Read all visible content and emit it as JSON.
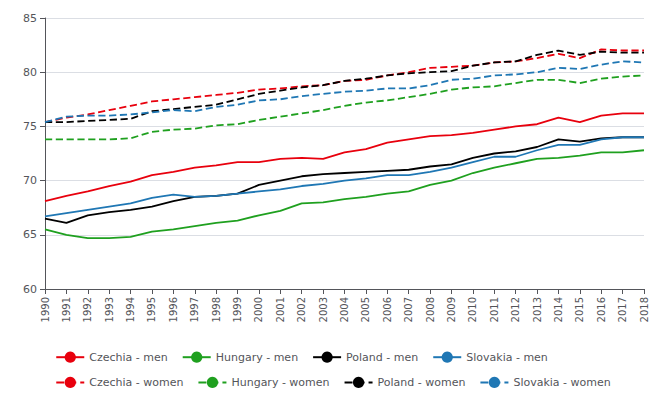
{
  "chart_data": {
    "type": "line",
    "x": [
      1990,
      1991,
      1992,
      1993,
      1994,
      1995,
      1996,
      1997,
      1998,
      1999,
      2000,
      2001,
      2002,
      2003,
      2004,
      2005,
      2006,
      2007,
      2008,
      2009,
      2010,
      2011,
      2012,
      2013,
      2014,
      2015,
      2016,
      2017,
      2018
    ],
    "xlim": [
      1990,
      2018
    ],
    "xticks": [
      1990,
      1991,
      1992,
      1993,
      1994,
      1995,
      1996,
      1997,
      1998,
      1999,
      2000,
      2001,
      2002,
      2003,
      2004,
      2005,
      2006,
      2007,
      2008,
      2009,
      2010,
      2011,
      2012,
      2013,
      2014,
      2015,
      2016,
      2017,
      2018
    ],
    "ylim": [
      60,
      85
    ],
    "yticks": [
      60,
      65,
      70,
      75,
      80,
      85
    ],
    "grid": true,
    "legend": "bottom",
    "series": [
      {
        "name": "Czechia - men",
        "color": "#e8000d",
        "line_style": "solid",
        "values": [
          68.1,
          68.6,
          69.0,
          69.5,
          69.9,
          70.5,
          70.8,
          71.2,
          71.4,
          71.7,
          71.7,
          72.0,
          72.1,
          72.0,
          72.6,
          72.9,
          73.5,
          73.8,
          74.1,
          74.2,
          74.4,
          74.7,
          75.0,
          75.2,
          75.8,
          75.4,
          76.0,
          76.2,
          76.2
        ]
      },
      {
        "name": "Hungary - men",
        "color": "#1fa01f",
        "line_style": "solid",
        "values": [
          65.5,
          65.0,
          64.7,
          64.7,
          64.8,
          65.3,
          65.5,
          65.8,
          66.1,
          66.3,
          66.8,
          67.2,
          67.9,
          68.0,
          68.3,
          68.5,
          68.8,
          69.0,
          69.6,
          70.0,
          70.7,
          71.2,
          71.6,
          72.0,
          72.1,
          72.3,
          72.6,
          72.6,
          72.8
        ]
      },
      {
        "name": "Poland - men",
        "color": "#000000",
        "line_style": "solid",
        "values": [
          66.5,
          66.1,
          66.8,
          67.1,
          67.3,
          67.6,
          68.1,
          68.5,
          68.6,
          68.8,
          69.6,
          70.0,
          70.4,
          70.6,
          70.7,
          70.8,
          70.9,
          71.0,
          71.3,
          71.5,
          72.1,
          72.5,
          72.7,
          73.1,
          73.8,
          73.6,
          73.9,
          74.0,
          74.0
        ]
      },
      {
        "name": "Slovakia - men",
        "color": "#1f77b4",
        "line_style": "solid",
        "values": [
          66.7,
          67.0,
          67.3,
          67.6,
          67.9,
          68.4,
          68.7,
          68.5,
          68.6,
          68.8,
          69.0,
          69.2,
          69.5,
          69.7,
          70.0,
          70.2,
          70.5,
          70.5,
          70.8,
          71.2,
          71.7,
          72.2,
          72.2,
          72.8,
          73.3,
          73.3,
          73.8,
          74.0,
          74.0
        ]
      },
      {
        "name": "Czechia - women",
        "color": "#e8000d",
        "line_style": "dashed",
        "values": [
          75.4,
          75.8,
          76.1,
          76.5,
          76.9,
          77.3,
          77.5,
          77.7,
          77.9,
          78.1,
          78.4,
          78.5,
          78.7,
          78.8,
          79.2,
          79.3,
          79.7,
          80.0,
          80.4,
          80.5,
          80.6,
          80.9,
          81.0,
          81.3,
          81.7,
          81.3,
          82.1,
          82.0,
          82.0
        ]
      },
      {
        "name": "Hungary - women",
        "color": "#1fa01f",
        "line_style": "dashed",
        "values": [
          73.8,
          73.8,
          73.8,
          73.8,
          73.9,
          74.5,
          74.7,
          74.8,
          75.1,
          75.2,
          75.6,
          75.9,
          76.2,
          76.5,
          76.9,
          77.2,
          77.4,
          77.7,
          78.0,
          78.4,
          78.6,
          78.7,
          79.0,
          79.3,
          79.3,
          79.0,
          79.4,
          79.6,
          79.7
        ]
      },
      {
        "name": "Poland - women",
        "color": "#000000",
        "line_style": "dashed",
        "values": [
          75.4,
          75.4,
          75.5,
          75.6,
          75.7,
          76.4,
          76.6,
          76.8,
          77.0,
          77.5,
          78.0,
          78.3,
          78.6,
          78.8,
          79.2,
          79.4,
          79.7,
          79.9,
          80.0,
          80.1,
          80.6,
          80.9,
          81.0,
          81.6,
          82.0,
          81.6,
          81.9,
          81.8,
          81.8
        ]
      },
      {
        "name": "Slovakia - women",
        "color": "#1f77b4",
        "line_style": "dashed",
        "values": [
          75.4,
          75.9,
          76.0,
          76.0,
          76.1,
          76.3,
          76.5,
          76.4,
          76.8,
          77.0,
          77.4,
          77.5,
          77.8,
          78.0,
          78.2,
          78.3,
          78.5,
          78.5,
          78.8,
          79.3,
          79.4,
          79.7,
          79.8,
          80.0,
          80.4,
          80.3,
          80.7,
          81.0,
          80.9
        ]
      }
    ]
  }
}
